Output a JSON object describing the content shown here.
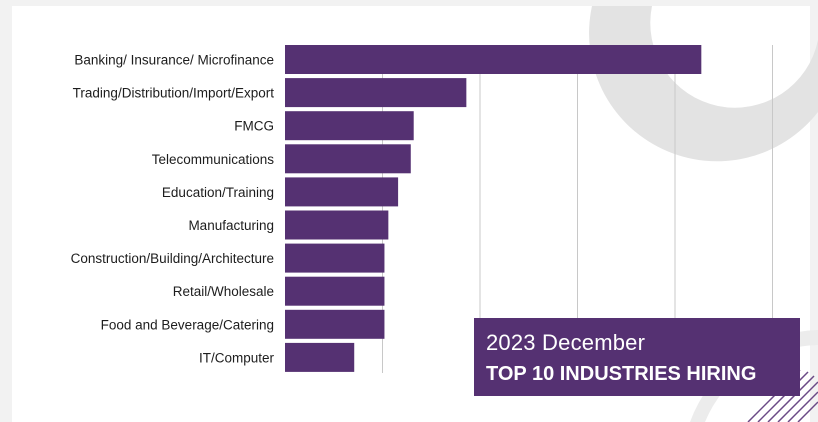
{
  "caption": {
    "date": "2023 December",
    "title": "TOP 10 INDUSTRIES HIRING"
  },
  "colors": {
    "bar": "#553172",
    "grid": "#c8c8c8",
    "decor": "#e3e3e3",
    "text": "#1d1d1d"
  },
  "chart_data": {
    "type": "bar",
    "orientation": "horizontal",
    "title": "",
    "xlabel": "",
    "ylabel": "",
    "xlim": [
      0,
      500
    ],
    "grid": true,
    "categories": [
      "Banking/ Insurance/ Microfinance",
      "Trading/Distribution/Import/Export",
      "FMCG",
      "Telecommunications",
      "Education/Training",
      "Manufacturing",
      "Construction/Building/Architecture",
      "Retail/Wholesale",
      "Food and Beverage/Catering",
      "IT/Computer"
    ],
    "values": [
      427,
      186,
      132,
      129,
      116,
      106,
      102,
      102,
      102,
      71
    ]
  }
}
